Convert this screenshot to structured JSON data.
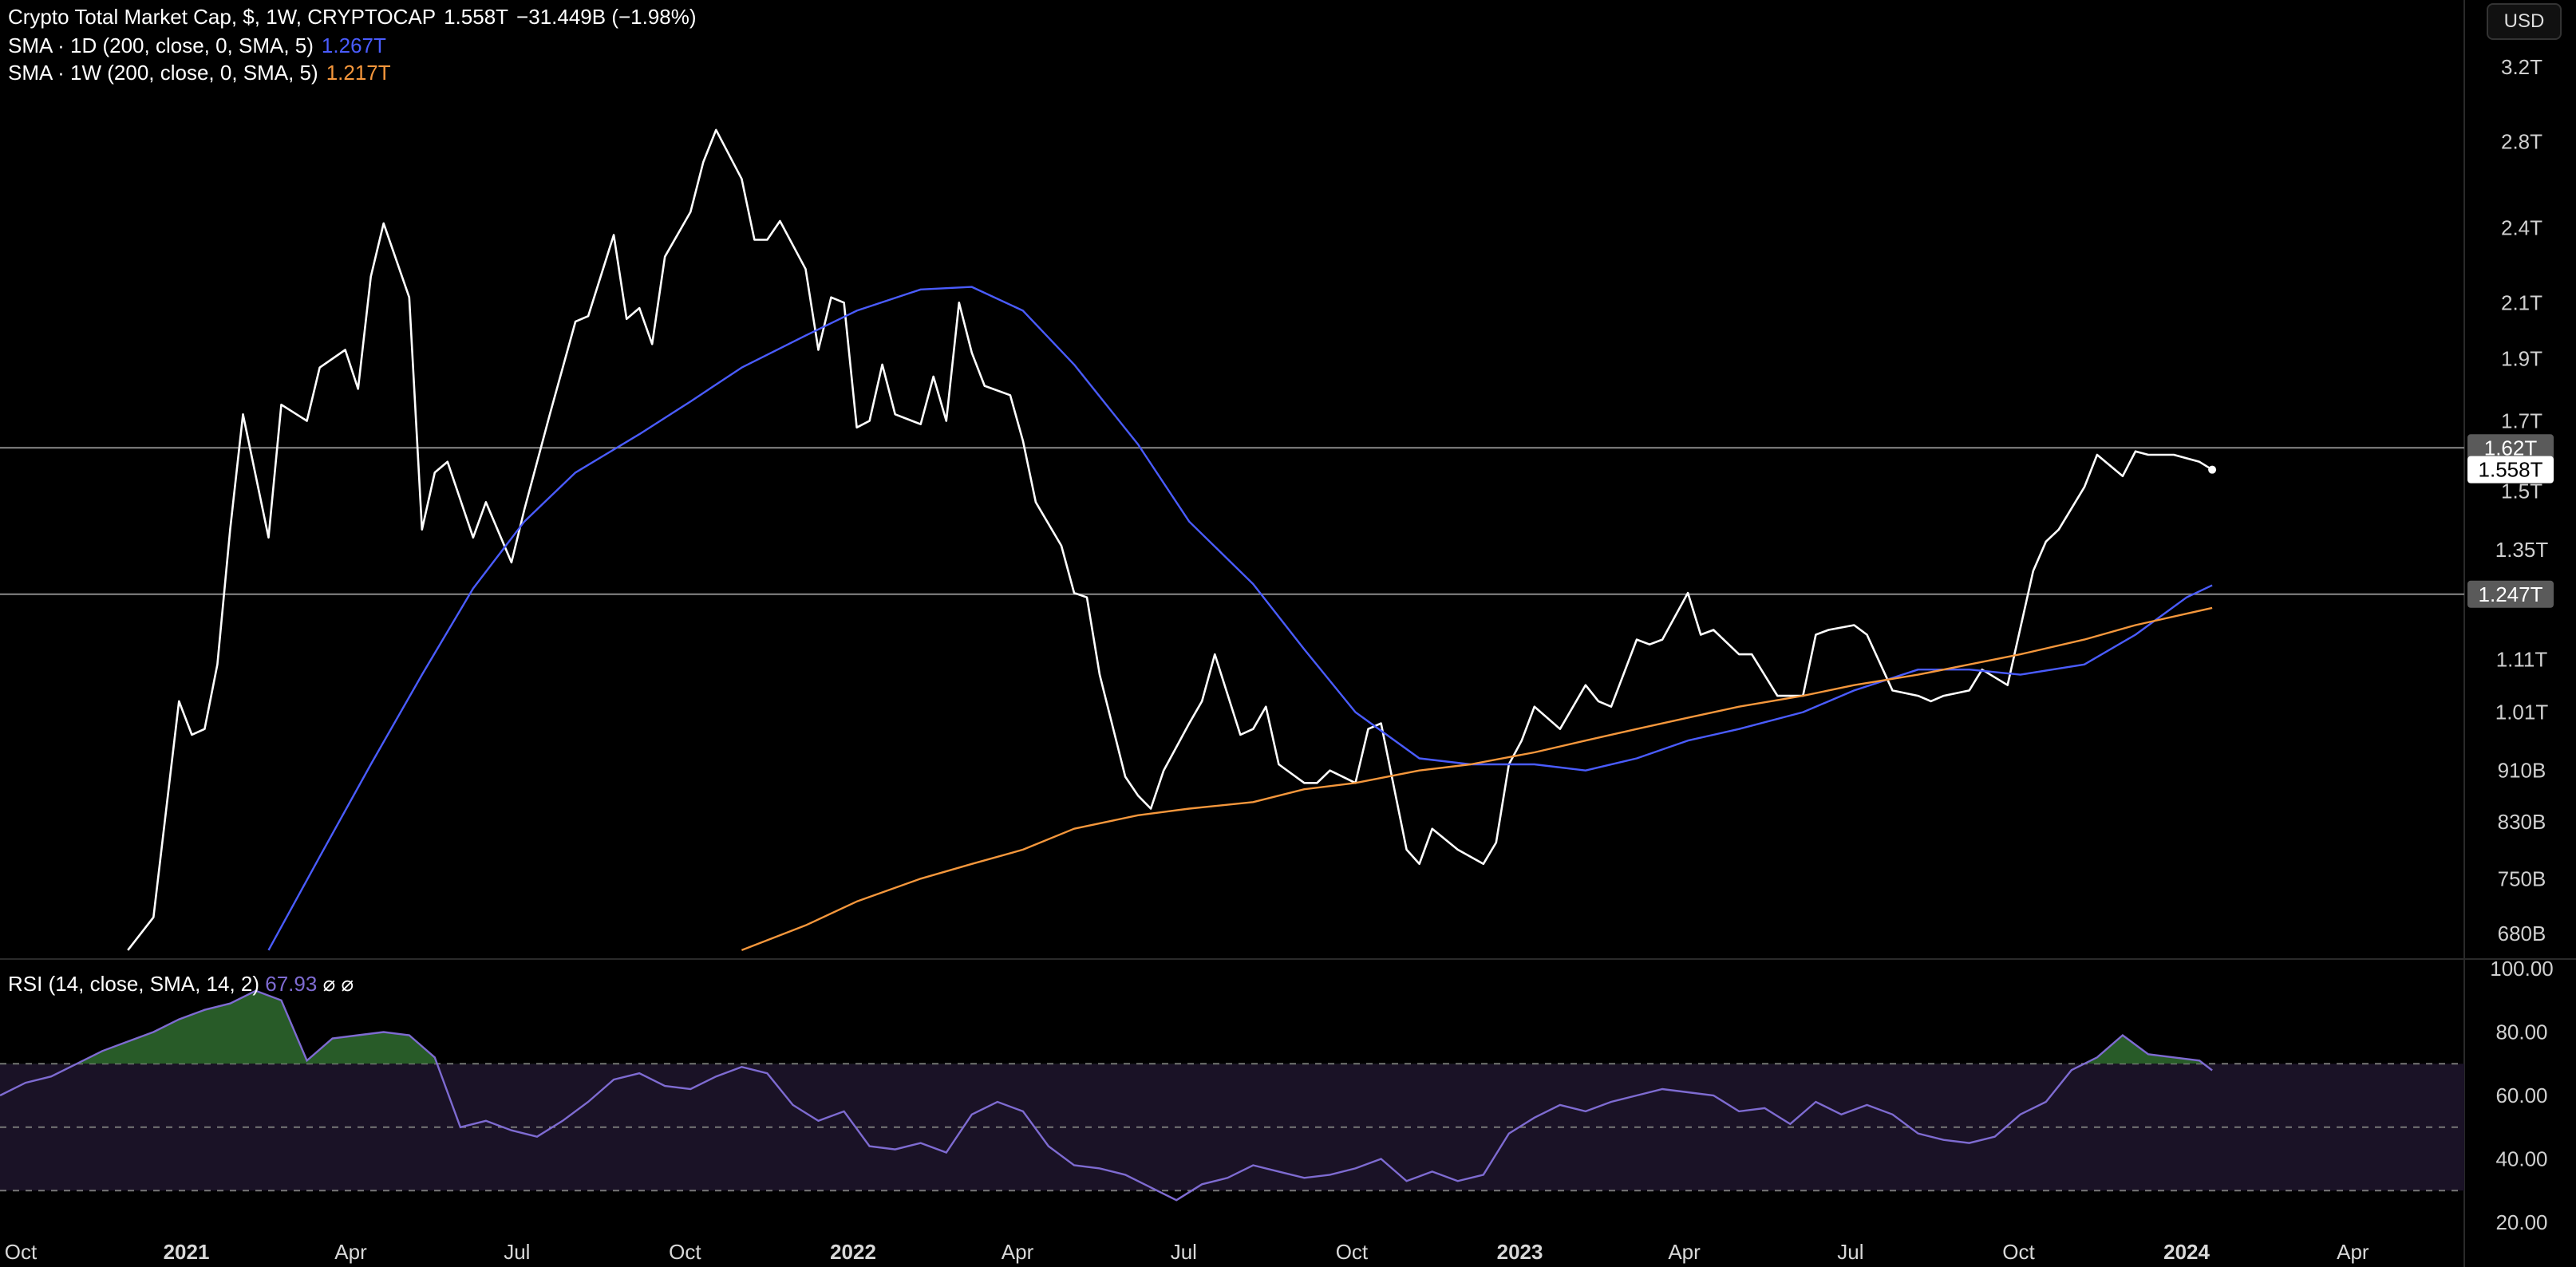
{
  "header": {
    "main": {
      "title": "Crypto Total Market Cap, $, 1W, CRYPTOCAP",
      "price": "1.558T",
      "change": "−31.449B (−1.98%)"
    },
    "sma1d": {
      "label": "SMA · 1D (200, close, 0, SMA, 5)",
      "value": "1.267T"
    },
    "sma1w": {
      "label": "SMA · 1W (200, close, 0, SMA, 5)",
      "value": "1.217T"
    },
    "rsi": {
      "label": "RSI (14, close, SMA, 14, 2)",
      "value": "67.93",
      "icon1": "⌀",
      "icon2": "⌀"
    }
  },
  "currency_button": "USD",
  "colors": {
    "price_line": "#ffffff",
    "sma1d": "#4a5cff",
    "sma1w": "#f5973c",
    "rsi": "#7e6bd1",
    "rsi_fill_high": "#2f6b2f",
    "rsi_band": "#1a1226",
    "hline": "#8a8a8a"
  },
  "chart_data": [
    {
      "type": "line",
      "title": "Crypto Total Market Cap, $, 1W, CRYPTOCAP",
      "x_labels": [
        "Oct",
        "2021",
        "Apr",
        "Jul",
        "Oct",
        "2022",
        "Apr",
        "Jul",
        "Oct",
        "2023",
        "Apr",
        "Jul",
        "Oct",
        "2024",
        "Apr"
      ],
      "y_scale": "log",
      "y_ticks": [
        "3.2T",
        "2.8T",
        "2.4T",
        "2.1T",
        "1.9T",
        "1.7T",
        "1.5T",
        "1.35T",
        "1.11T",
        "1.01T",
        "910B",
        "830B",
        "750B",
        "680B"
      ],
      "y_tick_values": [
        3.2,
        2.8,
        2.4,
        2.1,
        1.9,
        1.7,
        1.5,
        1.35,
        1.11,
        1.01,
        0.91,
        0.83,
        0.75,
        0.68
      ],
      "price_tags": [
        {
          "label": "1.62T",
          "value": 1.62,
          "style": "gray"
        },
        {
          "label": "1.558T",
          "value": 1.558,
          "style": "white"
        },
        {
          "label": "1.247T",
          "value": 1.247,
          "style": "gray"
        }
      ],
      "horizontal_lines": [
        1.62,
        1.247
      ],
      "series": [
        {
          "name": "Crypto Total Market Cap",
          "x": [
            "2020-11-30",
            "2020-12-14",
            "2020-12-28",
            "2021-01-04",
            "2021-01-11",
            "2021-01-18",
            "2021-01-25",
            "2021-02-01",
            "2021-02-15",
            "2021-02-22",
            "2021-03-08",
            "2021-03-15",
            "2021-03-29",
            "2021-04-05",
            "2021-04-12",
            "2021-04-19",
            "2021-05-03",
            "2021-05-10",
            "2021-05-17",
            "2021-05-24",
            "2021-06-07",
            "2021-06-14",
            "2021-06-28",
            "2021-07-05",
            "2021-07-19",
            "2021-08-02",
            "2021-08-09",
            "2021-08-23",
            "2021-08-30",
            "2021-09-06",
            "2021-09-13",
            "2021-09-20",
            "2021-10-04",
            "2021-10-11",
            "2021-10-18",
            "2021-11-01",
            "2021-11-08",
            "2021-11-15",
            "2021-11-22",
            "2021-12-06",
            "2021-12-13",
            "2021-12-20",
            "2021-12-27",
            "2022-01-03",
            "2022-01-10",
            "2022-01-17",
            "2022-01-24",
            "2022-02-07",
            "2022-02-14",
            "2022-02-21",
            "2022-02-28",
            "2022-03-07",
            "2022-03-14",
            "2022-03-28",
            "2022-04-04",
            "2022-04-11",
            "2022-04-25",
            "2022-05-02",
            "2022-05-09",
            "2022-05-16",
            "2022-05-30",
            "2022-06-06",
            "2022-06-13",
            "2022-06-20",
            "2022-07-04",
            "2022-07-11",
            "2022-07-18",
            "2022-08-01",
            "2022-08-08",
            "2022-08-15",
            "2022-08-22",
            "2022-09-05",
            "2022-09-12",
            "2022-09-19",
            "2022-10-03",
            "2022-10-10",
            "2022-10-17",
            "2022-10-31",
            "2022-11-07",
            "2022-11-14",
            "2022-11-28",
            "2022-12-12",
            "2022-12-19",
            "2022-12-26",
            "2023-01-02",
            "2023-01-09",
            "2023-01-23",
            "2023-02-06",
            "2023-02-13",
            "2023-02-20",
            "2023-03-06",
            "2023-03-13",
            "2023-03-20",
            "2023-04-03",
            "2023-04-10",
            "2023-04-17",
            "2023-05-01",
            "2023-05-08",
            "2023-05-22",
            "2023-06-05",
            "2023-06-12",
            "2023-06-19",
            "2023-07-03",
            "2023-07-10",
            "2023-07-24",
            "2023-08-07",
            "2023-08-14",
            "2023-08-21",
            "2023-09-04",
            "2023-09-11",
            "2023-09-25",
            "2023-10-09",
            "2023-10-16",
            "2023-10-23",
            "2023-11-06",
            "2023-11-13",
            "2023-11-27",
            "2023-12-04",
            "2023-12-11",
            "2023-12-25",
            "2024-01-08",
            "2024-01-15"
          ],
          "y": [
            0.66,
            0.7,
            1.03,
            0.97,
            0.98,
            1.1,
            1.4,
            1.72,
            1.38,
            1.75,
            1.7,
            1.87,
            1.93,
            1.8,
            2.2,
            2.42,
            2.12,
            1.4,
            1.55,
            1.58,
            1.38,
            1.47,
            1.32,
            1.45,
            1.72,
            2.03,
            2.05,
            2.37,
            2.04,
            2.08,
            1.95,
            2.28,
            2.47,
            2.7,
            2.86,
            2.62,
            2.35,
            2.35,
            2.43,
            2.23,
            1.93,
            2.12,
            2.1,
            1.68,
            1.7,
            1.88,
            1.72,
            1.69,
            1.84,
            1.7,
            2.1,
            1.92,
            1.81,
            1.78,
            1.64,
            1.47,
            1.36,
            1.25,
            1.24,
            1.08,
            0.9,
            0.87,
            0.85,
            0.91,
            0.99,
            1.03,
            1.12,
            0.97,
            0.98,
            1.02,
            0.92,
            0.89,
            0.89,
            0.91,
            0.89,
            0.98,
            0.99,
            0.79,
            0.77,
            0.82,
            0.79,
            0.77,
            0.8,
            0.92,
            0.96,
            1.02,
            0.98,
            1.06,
            1.03,
            1.02,
            1.15,
            1.14,
            1.15,
            1.25,
            1.16,
            1.17,
            1.12,
            1.12,
            1.04,
            1.04,
            1.16,
            1.17,
            1.18,
            1.16,
            1.05,
            1.04,
            1.03,
            1.04,
            1.05,
            1.09,
            1.06,
            1.3,
            1.37,
            1.4,
            1.51,
            1.6,
            1.54,
            1.61,
            1.6,
            1.6,
            1.58,
            1.558
          ]
        },
        {
          "name": "SMA · 1D (200, close, 0, SMA, 5)",
          "x": [
            "2021-02-15",
            "2021-03-15",
            "2021-04-12",
            "2021-05-10",
            "2021-06-07",
            "2021-07-05",
            "2021-08-02",
            "2021-09-06",
            "2021-10-04",
            "2021-11-01",
            "2021-12-06",
            "2022-01-03",
            "2022-02-07",
            "2022-03-07",
            "2022-04-04",
            "2022-05-02",
            "2022-06-06",
            "2022-07-04",
            "2022-08-08",
            "2022-09-05",
            "2022-10-03",
            "2022-11-07",
            "2022-12-05",
            "2023-01-09",
            "2023-02-06",
            "2023-03-06",
            "2023-04-03",
            "2023-05-01",
            "2023-06-05",
            "2023-07-03",
            "2023-08-07",
            "2023-09-04",
            "2023-10-02",
            "2023-11-06",
            "2023-12-04",
            "2024-01-01",
            "2024-01-15"
          ],
          "y": [
            0.66,
            0.78,
            0.92,
            1.08,
            1.26,
            1.42,
            1.55,
            1.66,
            1.76,
            1.87,
            1.98,
            2.07,
            2.15,
            2.16,
            2.07,
            1.88,
            1.63,
            1.42,
            1.27,
            1.13,
            1.01,
            0.93,
            0.92,
            0.92,
            0.91,
            0.93,
            0.96,
            0.98,
            1.01,
            1.05,
            1.09,
            1.09,
            1.08,
            1.1,
            1.16,
            1.24,
            1.267
          ]
        },
        {
          "name": "SMA · 1W (200, close, 0, SMA, 5)",
          "x": [
            "2021-11-01",
            "2021-12-06",
            "2022-01-03",
            "2022-02-07",
            "2022-03-07",
            "2022-04-04",
            "2022-05-02",
            "2022-06-06",
            "2022-07-04",
            "2022-08-08",
            "2022-09-05",
            "2022-10-03",
            "2022-11-07",
            "2022-12-05",
            "2023-01-09",
            "2023-02-06",
            "2023-03-06",
            "2023-04-03",
            "2023-05-01",
            "2023-06-05",
            "2023-07-03",
            "2023-08-07",
            "2023-09-04",
            "2023-10-02",
            "2023-11-06",
            "2023-12-04",
            "2024-01-15"
          ],
          "y": [
            0.66,
            0.69,
            0.72,
            0.75,
            0.77,
            0.79,
            0.82,
            0.84,
            0.85,
            0.86,
            0.88,
            0.89,
            0.91,
            0.92,
            0.94,
            0.96,
            0.98,
            1.0,
            1.02,
            1.04,
            1.06,
            1.08,
            1.1,
            1.12,
            1.15,
            1.18,
            1.217
          ]
        }
      ]
    },
    {
      "type": "line",
      "title": "RSI (14, close, SMA, 14, 2)",
      "y_ticks": [
        "100.00",
        "80.00",
        "60.00",
        "40.00",
        "20.00"
      ],
      "y_tick_values": [
        100,
        80,
        60,
        40,
        20
      ],
      "ylim": [
        20,
        100
      ],
      "bands": [
        70,
        50,
        30
      ],
      "series": [
        {
          "name": "RSI",
          "x": [
            "2020-09-21",
            "2020-10-05",
            "2020-10-19",
            "2020-11-02",
            "2020-11-16",
            "2020-11-30",
            "2020-12-14",
            "2020-12-28",
            "2021-01-11",
            "2021-01-25",
            "2021-02-08",
            "2021-02-22",
            "2021-03-08",
            "2021-03-22",
            "2021-04-05",
            "2021-04-19",
            "2021-05-03",
            "2021-05-17",
            "2021-05-31",
            "2021-06-14",
            "2021-06-28",
            "2021-07-12",
            "2021-07-26",
            "2021-08-09",
            "2021-08-23",
            "2021-09-06",
            "2021-09-20",
            "2021-10-04",
            "2021-10-18",
            "2021-11-01",
            "2021-11-15",
            "2021-11-29",
            "2021-12-13",
            "2021-12-27",
            "2022-01-10",
            "2022-01-24",
            "2022-02-07",
            "2022-02-21",
            "2022-03-07",
            "2022-03-21",
            "2022-04-04",
            "2022-04-18",
            "2022-05-02",
            "2022-05-16",
            "2022-05-30",
            "2022-06-13",
            "2022-06-27",
            "2022-07-11",
            "2022-07-25",
            "2022-08-08",
            "2022-08-22",
            "2022-09-05",
            "2022-09-19",
            "2022-10-03",
            "2022-10-17",
            "2022-10-31",
            "2022-11-14",
            "2022-11-28",
            "2022-12-12",
            "2022-12-26",
            "2023-01-09",
            "2023-01-23",
            "2023-02-06",
            "2023-02-20",
            "2023-03-06",
            "2023-03-20",
            "2023-04-03",
            "2023-04-17",
            "2023-05-01",
            "2023-05-15",
            "2023-05-29",
            "2023-06-12",
            "2023-06-26",
            "2023-07-10",
            "2023-07-24",
            "2023-08-07",
            "2023-08-21",
            "2023-09-04",
            "2023-09-18",
            "2023-10-02",
            "2023-10-16",
            "2023-10-30",
            "2023-11-13",
            "2023-11-27",
            "2023-12-11",
            "2023-12-25",
            "2024-01-08",
            "2024-01-15"
          ],
          "y": [
            60,
            64,
            66,
            70,
            74,
            77,
            80,
            84,
            87,
            89,
            93,
            90,
            71,
            78,
            79,
            80,
            79,
            72,
            50,
            52,
            49,
            47,
            52,
            58,
            65,
            67,
            63,
            62,
            66,
            69,
            67,
            57,
            52,
            55,
            44,
            43,
            45,
            42,
            54,
            58,
            55,
            44,
            38,
            37,
            35,
            31,
            27,
            32,
            34,
            38,
            36,
            34,
            35,
            37,
            40,
            33,
            36,
            33,
            35,
            48,
            53,
            57,
            55,
            58,
            60,
            62,
            61,
            60,
            55,
            56,
            51,
            58,
            54,
            57,
            54,
            48,
            46,
            45,
            47,
            54,
            58,
            68,
            72,
            79,
            73,
            72,
            71,
            67.93
          ]
        }
      ]
    }
  ]
}
